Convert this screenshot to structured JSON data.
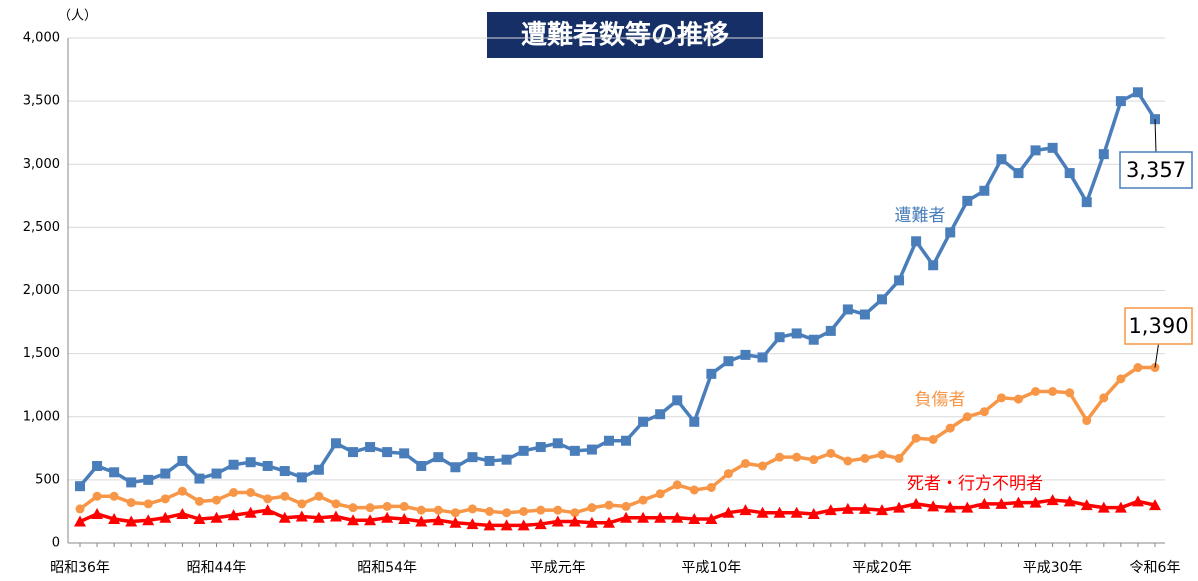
{
  "chart_data": {
    "type": "line",
    "title": "遭難者数等の推移",
    "ylabel": "（人）",
    "ylim": [
      0,
      4000
    ],
    "yticks": [
      0,
      500,
      {
        "value": 1000,
        "label": "1,000"
      },
      {
        "value": 1500,
        "label": "1,500"
      },
      {
        "value": 2000,
        "label": "2,000"
      },
      {
        "value": 2500,
        "label": "2,500"
      },
      {
        "value": 3000,
        "label": "3,000"
      },
      {
        "value": 3500,
        "label": "3,500"
      },
      {
        "value": 4000,
        "label": "4,000"
      }
    ],
    "grid": true,
    "categories": [
      "昭和36年",
      null,
      null,
      null,
      null,
      null,
      null,
      null,
      "昭和44年",
      null,
      null,
      null,
      null,
      null,
      null,
      null,
      null,
      null,
      "昭和54年",
      null,
      null,
      null,
      null,
      null,
      null,
      null,
      null,
      null,
      "平成元年",
      null,
      null,
      null,
      null,
      null,
      null,
      null,
      null,
      "平成10年",
      null,
      null,
      null,
      null,
      null,
      null,
      null,
      null,
      null,
      "平成20年",
      null,
      null,
      null,
      null,
      null,
      null,
      null,
      null,
      null,
      "平成30年",
      null,
      null,
      null,
      null,
      null,
      "令和6年"
    ],
    "series": [
      {
        "name": "遭難者",
        "color": "#4a7ebb",
        "marker": "square",
        "values": [
          450,
          610,
          560,
          480,
          500,
          550,
          650,
          510,
          550,
          620,
          640,
          610,
          570,
          520,
          580,
          790,
          720,
          760,
          720,
          710,
          610,
          680,
          600,
          680,
          650,
          660,
          730,
          760,
          790,
          730,
          740,
          810,
          810,
          960,
          1020,
          1130,
          960,
          1340,
          1440,
          1490,
          1470,
          1630,
          1660,
          1610,
          1680,
          1850,
          1810,
          1930,
          2080,
          2390,
          2200,
          2460,
          2710,
          2790,
          3040,
          2930,
          3110,
          3130,
          2930,
          2700,
          3080,
          3500,
          3570,
          3357
        ],
        "value_labels": [
          null,
          null,
          null,
          null,
          null,
          null,
          null,
          null,
          null,
          null,
          null,
          null,
          null,
          null,
          null,
          null,
          null,
          null,
          null,
          null,
          null,
          null,
          null,
          null,
          null,
          null,
          null,
          null,
          null,
          null,
          null,
          null,
          null,
          null,
          null,
          null,
          null,
          null,
          null,
          null,
          null,
          null,
          null,
          null,
          null,
          null,
          null,
          null,
          null,
          null,
          null,
          null,
          null,
          null,
          null,
          null,
          null,
          null,
          null,
          null,
          null,
          null,
          null,
          "3,357"
        ]
      },
      {
        "name": "負傷者",
        "color": "#f79646",
        "marker": "circle",
        "values": [
          270,
          370,
          370,
          320,
          310,
          350,
          410,
          330,
          340,
          400,
          400,
          350,
          370,
          310,
          370,
          310,
          280,
          280,
          290,
          290,
          260,
          260,
          240,
          270,
          250,
          240,
          250,
          260,
          260,
          240,
          280,
          300,
          290,
          340,
          390,
          460,
          420,
          440,
          550,
          630,
          610,
          680,
          680,
          660,
          710,
          650,
          670,
          700,
          670,
          830,
          820,
          910,
          1000,
          1040,
          1150,
          1140,
          1200,
          1200,
          1190,
          970,
          1150,
          1300,
          1390,
          1390
        ],
        "value_labels": [
          null,
          null,
          null,
          null,
          null,
          null,
          null,
          null,
          null,
          null,
          null,
          null,
          null,
          null,
          null,
          null,
          null,
          null,
          null,
          null,
          null,
          null,
          null,
          null,
          null,
          null,
          null,
          null,
          null,
          null,
          null,
          null,
          null,
          null,
          null,
          null,
          null,
          null,
          null,
          null,
          null,
          null,
          null,
          null,
          null,
          null,
          null,
          null,
          null,
          null,
          null,
          null,
          null,
          null,
          null,
          null,
          null,
          null,
          null,
          null,
          null,
          null,
          null,
          "1,390"
        ]
      },
      {
        "name": "死者・行方不明者",
        "color": "#ff0000",
        "marker": "triangle",
        "values": [
          170,
          230,
          190,
          170,
          180,
          200,
          230,
          190,
          200,
          220,
          240,
          260,
          200,
          210,
          200,
          210,
          180,
          180,
          200,
          190,
          170,
          180,
          160,
          150,
          140,
          140,
          140,
          150,
          170,
          170,
          160,
          160,
          200,
          200,
          200,
          200,
          190,
          190,
          240,
          260,
          240,
          240,
          240,
          230,
          260,
          270,
          270,
          260,
          280,
          310,
          290,
          280,
          280,
          310,
          310,
          320,
          320,
          340,
          330,
          300,
          280,
          280,
          330,
          300
        ]
      }
    ]
  }
}
